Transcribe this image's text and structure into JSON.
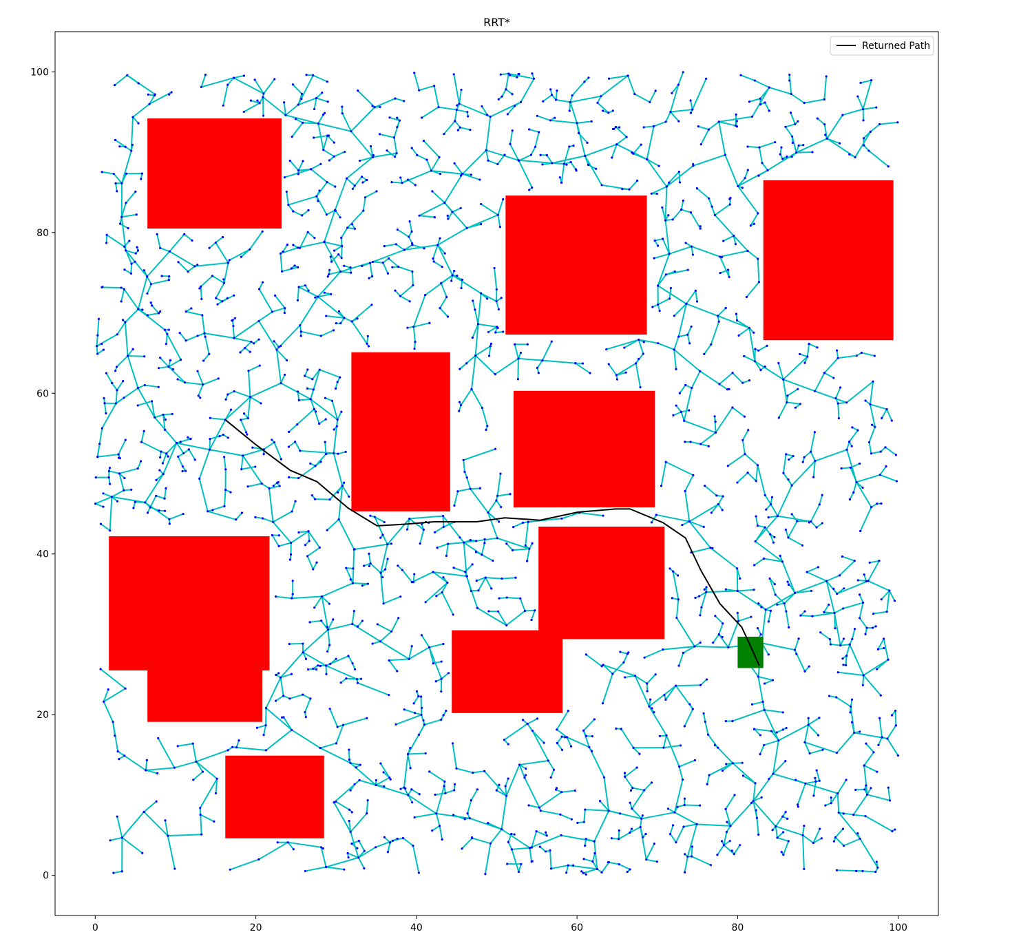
{
  "chart_data": {
    "type": "scatter",
    "title": "RRT*",
    "xlabel": "",
    "ylabel": "",
    "xlim": [
      -5,
      105
    ],
    "ylim": [
      -5,
      105
    ],
    "x_ticks": [
      0,
      20,
      40,
      60,
      80,
      100
    ],
    "y_ticks": [
      0,
      20,
      40,
      60,
      80,
      100
    ],
    "x_tick_labels": [
      "0",
      "20",
      "40",
      "60",
      "80",
      "100"
    ],
    "y_tick_labels": [
      "0",
      "20",
      "40",
      "60",
      "80",
      "100"
    ],
    "grid": false,
    "legend": {
      "position": "top-right",
      "entries": [
        {
          "label": "Returned Path",
          "color": "#000000"
        }
      ]
    },
    "colors": {
      "tree_edge": "#00bfbf",
      "tree_node": "#0000ff",
      "obstacle": "#ff0000",
      "goal": "#008000",
      "path": "#000000"
    },
    "tree_root": [
      16.2,
      56.7
    ],
    "obstacles": [
      {
        "x0": 6.5,
        "y0": 80.5,
        "x1": 23.2,
        "y1": 94.2
      },
      {
        "x0": 51.1,
        "y0": 67.3,
        "x1": 68.7,
        "y1": 84.6
      },
      {
        "x0": 83.2,
        "y0": 66.6,
        "x1": 99.4,
        "y1": 86.5
      },
      {
        "x0": 31.9,
        "y0": 45.3,
        "x1": 44.2,
        "y1": 65.1
      },
      {
        "x0": 52.1,
        "y0": 45.8,
        "x1": 69.7,
        "y1": 60.3
      },
      {
        "x0": 1.7,
        "y0": 25.5,
        "x1": 21.7,
        "y1": 42.2
      },
      {
        "x0": 6.5,
        "y0": 19.1,
        "x1": 20.8,
        "y1": 25.5
      },
      {
        "x0": 55.2,
        "y0": 29.4,
        "x1": 70.9,
        "y1": 43.4
      },
      {
        "x0": 44.4,
        "y0": 20.2,
        "x1": 58.2,
        "y1": 30.5
      },
      {
        "x0": 16.2,
        "y0": 4.6,
        "x1": 28.5,
        "y1": 14.9
      }
    ],
    "goal_region": {
      "x0": 80.0,
      "y0": 25.8,
      "x1": 83.2,
      "y1": 29.7
    },
    "returned_path": {
      "name": "Returned Path",
      "x": [
        16.2,
        20.0,
        24.3,
        27.6,
        31.5,
        35.1,
        38.6,
        42.2,
        47.5,
        51.0,
        55.4,
        60.1,
        64.8,
        66.6,
        70.7,
        73.5,
        75.4,
        77.8,
        80.5,
        81.3,
        82.7
      ],
      "y": [
        56.7,
        53.6,
        50.4,
        49.0,
        45.7,
        43.5,
        43.7,
        44.0,
        44.0,
        44.5,
        44.2,
        45.2,
        45.6,
        45.6,
        43.9,
        42.0,
        38.0,
        33.8,
        30.9,
        29.2,
        26.1
      ]
    },
    "tree": {
      "node_count": 1800
    }
  }
}
